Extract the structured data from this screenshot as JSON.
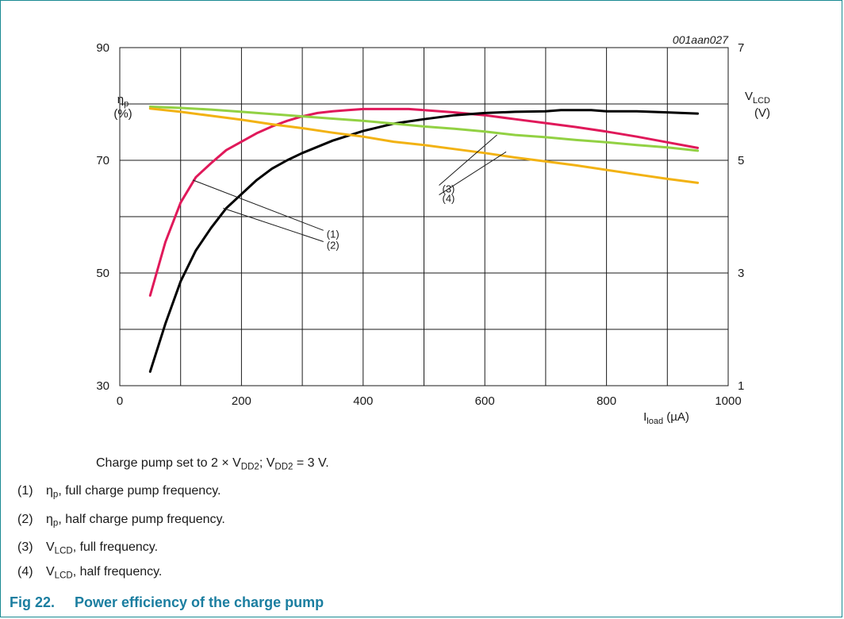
{
  "chart_data": {
    "type": "line",
    "figure_id": "001aan027",
    "x_axis": {
      "label_main": "I",
      "label_sub": "load",
      "label_unit": " (µA)",
      "range": [
        0,
        1000
      ],
      "ticks": [
        0,
        200,
        400,
        600,
        800,
        1000
      ],
      "minor_grid_step": 100
    },
    "y_left": {
      "label_main": "η",
      "label_sub": "p",
      "label_unit": "(%)",
      "range": [
        30,
        90
      ],
      "ticks": [
        30,
        50,
        70,
        90
      ],
      "grid_step": 10
    },
    "y_right": {
      "label_main": "V",
      "label_sub": "LCD",
      "label_unit": "(V)",
      "range": [
        1,
        7
      ],
      "ticks": [
        1,
        3,
        5,
        7
      ]
    },
    "grid": true,
    "series": [
      {
        "id": "1",
        "color": "#e0195a",
        "axis": "left",
        "x": [
          50,
          75,
          100,
          125,
          150,
          175,
          200,
          225,
          250,
          275,
          300,
          325,
          350,
          375,
          400,
          425,
          450,
          475,
          500,
          550,
          600,
          650,
          700,
          750,
          800,
          850,
          900,
          950
        ],
        "y": [
          46.0,
          55.5,
          62.5,
          67.0,
          69.5,
          71.8,
          73.3,
          74.8,
          76.0,
          77.0,
          77.8,
          78.4,
          78.7,
          78.9,
          79.1,
          79.1,
          79.1,
          79.1,
          78.9,
          78.5,
          78.0,
          77.3,
          76.6,
          75.9,
          75.1,
          74.2,
          73.2,
          72.2
        ]
      },
      {
        "id": "2",
        "color": "#000000",
        "axis": "left",
        "x": [
          50,
          75,
          100,
          125,
          150,
          175,
          200,
          225,
          250,
          275,
          300,
          350,
          400,
          450,
          500,
          550,
          600,
          650,
          700,
          725,
          750,
          775,
          800,
          850,
          900,
          950
        ],
        "y": [
          32.5,
          41.0,
          48.5,
          54.0,
          58.0,
          61.5,
          64.0,
          66.5,
          68.5,
          70.0,
          71.3,
          73.5,
          75.2,
          76.5,
          77.3,
          78.0,
          78.4,
          78.6,
          78.7,
          78.9,
          78.9,
          78.9,
          78.7,
          78.7,
          78.5,
          78.3
        ]
      },
      {
        "id": "3",
        "color": "#92d143",
        "axis": "right",
        "x": [
          50,
          100,
          150,
          200,
          250,
          300,
          350,
          400,
          450,
          500,
          550,
          600,
          650,
          700,
          750,
          800,
          850,
          900,
          950
        ],
        "y": [
          5.95,
          5.93,
          5.9,
          5.86,
          5.82,
          5.78,
          5.74,
          5.7,
          5.65,
          5.6,
          5.56,
          5.51,
          5.45,
          5.41,
          5.36,
          5.32,
          5.27,
          5.23,
          5.17
        ]
      },
      {
        "id": "4",
        "color": "#f2b213",
        "axis": "right",
        "x": [
          50,
          100,
          150,
          200,
          250,
          300,
          350,
          400,
          450,
          500,
          550,
          600,
          650,
          700,
          750,
          800,
          850,
          900,
          950
        ],
        "y": [
          5.92,
          5.86,
          5.79,
          5.72,
          5.64,
          5.57,
          5.49,
          5.42,
          5.33,
          5.27,
          5.2,
          5.13,
          5.05,
          4.98,
          4.91,
          4.83,
          4.75,
          4.67,
          4.6
        ]
      }
    ],
    "annotations": [
      {
        "text": "(1)",
        "label_x": 340,
        "label_y": 57.0,
        "leader_to_x": 120,
        "leader_to_y": 66.5
      },
      {
        "text": "(2)",
        "label_x": 340,
        "label_y": 55.0,
        "leader_to_x": 170,
        "leader_to_y": 61.5
      },
      {
        "text": "(3)",
        "label_x": 530,
        "label_y": 65.0,
        "leader_to_x": 620,
        "leader_to_y": 74.5
      },
      {
        "text": "(4)",
        "label_x": 530,
        "label_y": 63.3,
        "leader_to_x": 635,
        "leader_to_y": 71.5
      }
    ]
  },
  "notes": {
    "condition": {
      "pre": "Charge pump set to 2 × V",
      "sub1": "DD2",
      "mid": "; V",
      "sub2": "DD2",
      "post": " = 3 V."
    },
    "items": [
      {
        "idx": "(1)",
        "sym": "η",
        "sub": "p",
        "text": ", full charge pump frequency."
      },
      {
        "idx": "(2)",
        "sym": "η",
        "sub": "p",
        "text": ", half charge pump frequency."
      },
      {
        "idx": "(3)",
        "sym": "V",
        "sub": "LCD",
        "text": ", full frequency."
      },
      {
        "idx": "(4)",
        "sym": "V",
        "sub": "LCD",
        "text": ", half frequency."
      }
    ]
  },
  "caption": {
    "number": "Fig 22.",
    "title": "Power efficiency of the charge pump"
  }
}
